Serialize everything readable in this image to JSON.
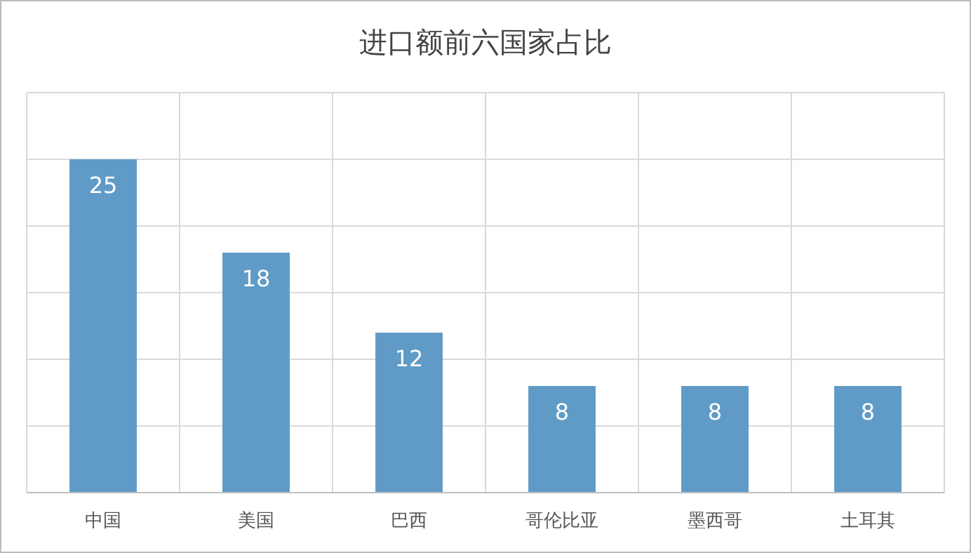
{
  "chart_data": {
    "type": "bar",
    "title": "进口额前六国家占比",
    "categories": [
      "中国",
      "美国",
      "巴西",
      "哥伦比亚",
      "墨西哥",
      "土耳其"
    ],
    "values": [
      25,
      18,
      12,
      8,
      8,
      8
    ],
    "color": "#5f9bc6",
    "ylim": [
      0,
      30
    ],
    "yticks": [
      0,
      5,
      10,
      15,
      20,
      25,
      30
    ],
    "tick_labels": "x",
    "grid": true,
    "data_labels": true
  }
}
